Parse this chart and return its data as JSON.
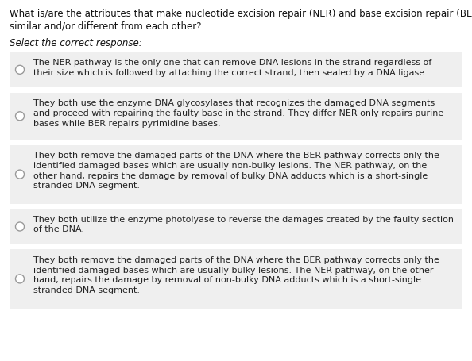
{
  "title_line1": "What is/are the attributes that make nucleotide excision repair (NER) and base excision repair (BER)",
  "title_line2": "similar and/or different from each other?",
  "subtitle": "Select the correct response:",
  "bg_color": "#ffffff",
  "option_bg": "#efefef",
  "gap_color": "#ffffff",
  "title_fontsize": 8.5,
  "subtitle_fontsize": 8.5,
  "option_fontsize": 8.0,
  "options": [
    "The NER pathway is the only one that can remove DNA lesions in the strand regardless of\ntheir size which is followed by attaching the correct strand, then sealed by a DNA ligase.",
    "They both use the enzyme DNA glycosylases that recognizes the damaged DNA segments\nand proceed with repairing the faulty base in the strand. They differ NER only repairs purine\nbases while BER repairs pyrimidine bases.",
    "They both remove the damaged parts of the DNA where the BER pathway corrects only the\nidentified damaged bases which are usually non-bulky lesions. The NER pathway, on the\nother hand, repairs the damage by removal of bulky DNA adducts which is a short-single\nstranded DNA segment.",
    "They both utilize the enzyme photolyase to reverse the damages created by the faulty section\nof the DNA.",
    "They both remove the damaged parts of the DNA where the BER pathway corrects only the\nidentified damaged bases which are usually bulky lesions. The NER pathway, on the other\nhand, repairs the damage by removal of non-bulky DNA adducts which is a short-single\nstranded DNA segment."
  ],
  "option_line_counts": [
    2,
    3,
    4,
    2,
    4
  ]
}
